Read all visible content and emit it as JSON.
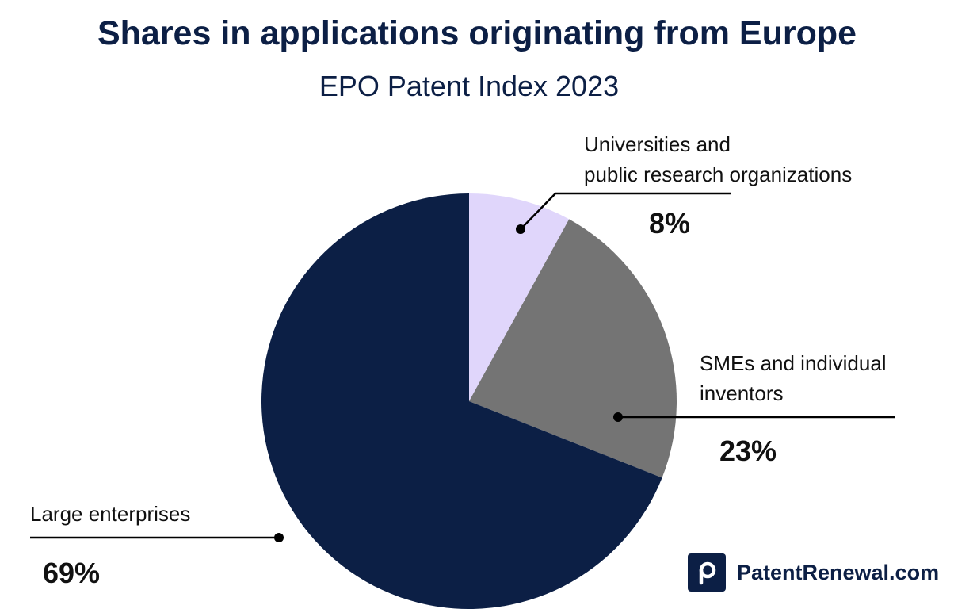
{
  "chart_data": {
    "type": "pie",
    "title": "Shares in applications originating from Europe",
    "subtitle": "EPO Patent Index 2023",
    "slices": [
      {
        "label_lines": [
          "Universities and",
          "public research organizations"
        ],
        "value": 8,
        "value_label": "8%",
        "color": "#e0d6fb"
      },
      {
        "label_lines": [
          "SMEs and individual",
          "inventors"
        ],
        "value": 23,
        "value_label": "23%",
        "color": "#747474"
      },
      {
        "label_lines": [
          "Large enterprises"
        ],
        "value": 69,
        "value_label": "69%",
        "color": "#0c1f45"
      }
    ]
  },
  "brand": {
    "text": "PatentRenewal.com",
    "icon": "p-logo-icon",
    "color": "#0c1f45"
  }
}
